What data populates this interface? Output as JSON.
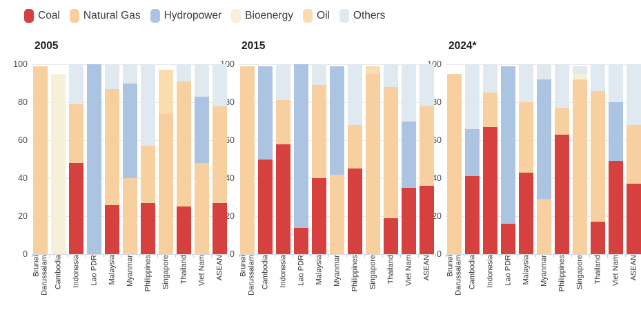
{
  "legend": [
    {
      "key": "coal",
      "label": "Coal",
      "color": "#d6403f"
    },
    {
      "key": "natural_gas",
      "label": "Natural Gas",
      "color": "#f8cf9e"
    },
    {
      "key": "hydropower",
      "label": "Hydropower",
      "color": "#abc4e1"
    },
    {
      "key": "bioenergy",
      "label": "Bioenergy",
      "color": "#f6f0d9"
    },
    {
      "key": "oil",
      "label": "Oil",
      "color": "#fadcb0"
    },
    {
      "key": "others",
      "label": "Others",
      "color": "#dfe9ef"
    }
  ],
  "chart_data": {
    "type": "bar",
    "stacked": true,
    "unit": "% share",
    "ylim": [
      0,
      100
    ],
    "yticks": [
      0,
      20,
      40,
      60,
      80,
      100
    ],
    "grid": true,
    "legend_position": "top-left",
    "categories": [
      "Brunei Darussalam",
      "Cambodia",
      "Indonesia",
      "Lao PDR",
      "Malaysia",
      "Myanmar",
      "Philippines",
      "Singapore",
      "Thailand",
      "Viet Nam",
      "ASEAN"
    ],
    "panels": [
      {
        "title": "2005",
        "bars": [
          [
            {
              "series": "natural_gas",
              "from": 0,
              "to": 99
            }
          ],
          [
            {
              "series": "bioenergy",
              "from": 0,
              "to": 95
            }
          ],
          [
            {
              "series": "coal",
              "from": 0,
              "to": 48
            },
            {
              "series": "natural_gas",
              "from": 48,
              "to": 79
            },
            {
              "series": "others",
              "from": 79,
              "to": 100
            }
          ],
          [
            {
              "series": "hydropower",
              "from": 0,
              "to": 100
            }
          ],
          [
            {
              "series": "coal",
              "from": 0,
              "to": 26
            },
            {
              "series": "natural_gas",
              "from": 26,
              "to": 87
            },
            {
              "series": "others",
              "from": 87,
              "to": 100
            }
          ],
          [
            {
              "series": "natural_gas",
              "from": 0,
              "to": 40
            },
            {
              "series": "hydropower",
              "from": 40,
              "to": 90
            },
            {
              "series": "others",
              "from": 90,
              "to": 100
            }
          ],
          [
            {
              "series": "coal",
              "from": 0,
              "to": 27
            },
            {
              "series": "natural_gas",
              "from": 27,
              "to": 57
            },
            {
              "series": "others",
              "from": 57,
              "to": 100
            }
          ],
          [
            {
              "series": "natural_gas",
              "from": 0,
              "to": 74
            },
            {
              "series": "oil",
              "from": 74,
              "to": 97
            }
          ],
          [
            {
              "series": "coal",
              "from": 0,
              "to": 25
            },
            {
              "series": "natural_gas",
              "from": 25,
              "to": 91
            },
            {
              "series": "others",
              "from": 91,
              "to": 100
            }
          ],
          [
            {
              "series": "natural_gas",
              "from": 0,
              "to": 48
            },
            {
              "series": "hydropower",
              "from": 48,
              "to": 83
            },
            {
              "series": "others",
              "from": 83,
              "to": 100
            }
          ],
          [
            {
              "series": "coal",
              "from": 0,
              "to": 27
            },
            {
              "series": "natural_gas",
              "from": 27,
              "to": 78
            },
            {
              "series": "others",
              "from": 78,
              "to": 100
            }
          ]
        ]
      },
      {
        "title": "2015",
        "bars": [
          [
            {
              "series": "natural_gas",
              "from": 0,
              "to": 99
            }
          ],
          [
            {
              "series": "coal",
              "from": 0,
              "to": 50
            },
            {
              "series": "hydropower",
              "from": 50,
              "to": 99
            }
          ],
          [
            {
              "series": "coal",
              "from": 0,
              "to": 58
            },
            {
              "series": "natural_gas",
              "from": 58,
              "to": 81
            },
            {
              "series": "others",
              "from": 81,
              "to": 100
            }
          ],
          [
            {
              "series": "coal",
              "from": 0,
              "to": 14
            },
            {
              "series": "hydropower",
              "from": 14,
              "to": 100
            }
          ],
          [
            {
              "series": "coal",
              "from": 0,
              "to": 40
            },
            {
              "series": "natural_gas",
              "from": 40,
              "to": 89
            },
            {
              "series": "others",
              "from": 89,
              "to": 100
            }
          ],
          [
            {
              "series": "natural_gas",
              "from": 0,
              "to": 42
            },
            {
              "series": "hydropower",
              "from": 42,
              "to": 99
            }
          ],
          [
            {
              "series": "coal",
              "from": 0,
              "to": 45
            },
            {
              "series": "natural_gas",
              "from": 45,
              "to": 68
            },
            {
              "series": "others",
              "from": 68,
              "to": 100
            }
          ],
          [
            {
              "series": "natural_gas",
              "from": 0,
              "to": 95
            },
            {
              "series": "oil",
              "from": 95,
              "to": 99
            }
          ],
          [
            {
              "series": "coal",
              "from": 0,
              "to": 19
            },
            {
              "series": "natural_gas",
              "from": 19,
              "to": 88
            },
            {
              "series": "others",
              "from": 88,
              "to": 100
            }
          ],
          [
            {
              "series": "coal",
              "from": 0,
              "to": 35
            },
            {
              "series": "hydropower",
              "from": 35,
              "to": 70
            },
            {
              "series": "others",
              "from": 70,
              "to": 100
            }
          ],
          [
            {
              "series": "coal",
              "from": 0,
              "to": 36
            },
            {
              "series": "natural_gas",
              "from": 36,
              "to": 78
            },
            {
              "series": "others",
              "from": 78,
              "to": 100
            }
          ]
        ]
      },
      {
        "title": "2024*",
        "bars": [
          [
            {
              "series": "natural_gas",
              "from": 0,
              "to": 95
            }
          ],
          [
            {
              "series": "coal",
              "from": 0,
              "to": 41
            },
            {
              "series": "hydropower",
              "from": 41,
              "to": 66
            },
            {
              "series": "others",
              "from": 66,
              "to": 100
            }
          ],
          [
            {
              "series": "coal",
              "from": 0,
              "to": 67
            },
            {
              "series": "natural_gas",
              "from": 67,
              "to": 85
            },
            {
              "series": "others",
              "from": 85,
              "to": 100
            }
          ],
          [
            {
              "series": "coal",
              "from": 0,
              "to": 16
            },
            {
              "series": "hydropower",
              "from": 16,
              "to": 99
            }
          ],
          [
            {
              "series": "coal",
              "from": 0,
              "to": 43
            },
            {
              "series": "natural_gas",
              "from": 43,
              "to": 80
            },
            {
              "series": "others",
              "from": 80,
              "to": 100
            }
          ],
          [
            {
              "series": "natural_gas",
              "from": 0,
              "to": 29
            },
            {
              "series": "hydropower",
              "from": 29,
              "to": 92
            },
            {
              "series": "others",
              "from": 92,
              "to": 100
            }
          ],
          [
            {
              "series": "coal",
              "from": 0,
              "to": 63
            },
            {
              "series": "natural_gas",
              "from": 63,
              "to": 77
            },
            {
              "series": "others",
              "from": 77,
              "to": 100
            }
          ],
          [
            {
              "series": "natural_gas",
              "from": 0,
              "to": 92
            },
            {
              "series": "bioenergy",
              "from": 92,
              "to": 95
            },
            {
              "series": "others",
              "from": 95,
              "to": 99
            }
          ],
          [
            {
              "series": "coal",
              "from": 0,
              "to": 17
            },
            {
              "series": "natural_gas",
              "from": 17,
              "to": 86
            },
            {
              "series": "others",
              "from": 86,
              "to": 100
            }
          ],
          [
            {
              "series": "coal",
              "from": 0,
              "to": 49
            },
            {
              "series": "hydropower",
              "from": 49,
              "to": 80
            },
            {
              "series": "others",
              "from": 80,
              "to": 100
            }
          ],
          [
            {
              "series": "coal",
              "from": 0,
              "to": 37
            },
            {
              "series": "natural_gas",
              "from": 37,
              "to": 68
            },
            {
              "series": "others",
              "from": 68,
              "to": 100
            }
          ]
        ]
      }
    ]
  }
}
